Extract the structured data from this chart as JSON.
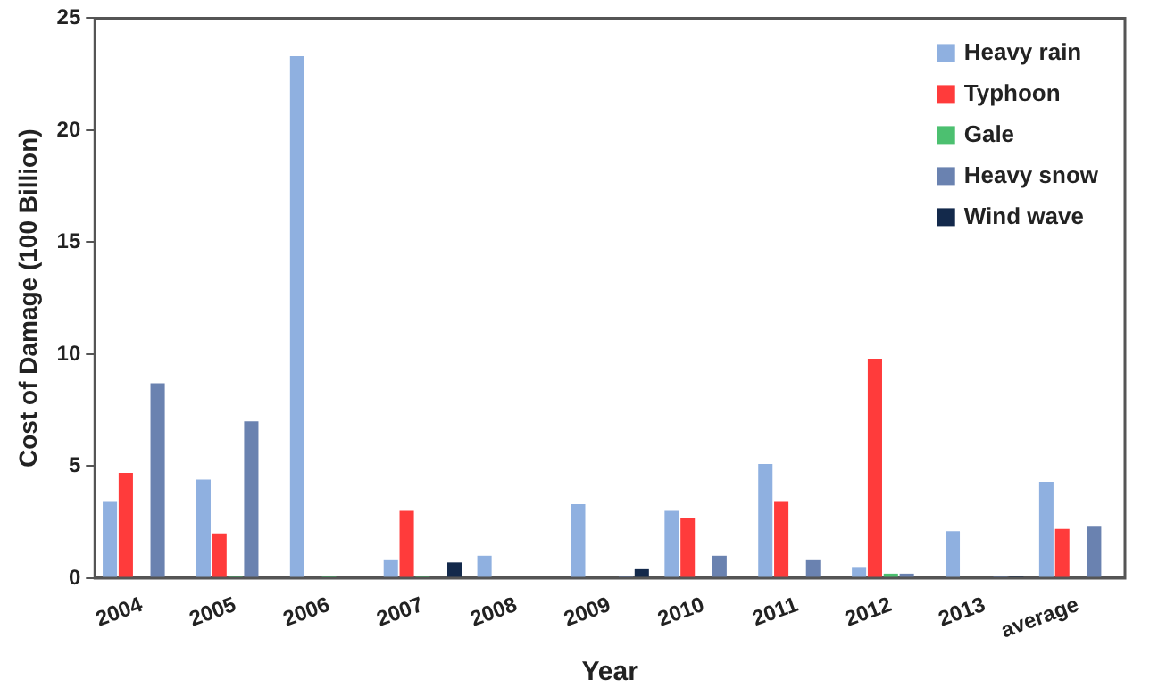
{
  "chart_data": {
    "type": "bar",
    "xlabel": "Year",
    "ylabel": "Cost of Damage (100 Billion)",
    "categories": [
      "2004",
      "2005",
      "2006",
      "2007",
      "2008",
      "2009",
      "2010",
      "2011",
      "2012",
      "2013",
      "average"
    ],
    "series": [
      {
        "name": "Heavy rain",
        "color": "#8fb0e0",
        "values": [
          3.4,
          4.4,
          23.3,
          0.8,
          1.0,
          3.3,
          3.0,
          5.1,
          0.5,
          2.1,
          4.3
        ]
      },
      {
        "name": "Typhoon",
        "color": "#ff3b3b",
        "values": [
          4.7,
          2.0,
          null,
          3.0,
          null,
          null,
          2.7,
          3.4,
          9.8,
          null,
          2.2
        ]
      },
      {
        "name": "Gale",
        "color": "#4cc070",
        "values": [
          null,
          0.1,
          0.1,
          0.1,
          null,
          null,
          null,
          null,
          0.2,
          null,
          null
        ]
      },
      {
        "name": "Heavy snow",
        "color": "#6a82b0",
        "values": [
          8.7,
          7.0,
          null,
          null,
          null,
          0.1,
          1.0,
          0.8,
          0.2,
          0.1,
          2.3
        ]
      },
      {
        "name": "Wind wave",
        "color": "#13294b",
        "values": [
          null,
          null,
          null,
          0.7,
          null,
          0.4,
          null,
          null,
          null,
          0.1,
          null
        ]
      }
    ],
    "ylim": [
      0,
      25
    ],
    "yticks": [
      0,
      5,
      10,
      15,
      20,
      25
    ],
    "grid": false,
    "legend": "top right"
  }
}
